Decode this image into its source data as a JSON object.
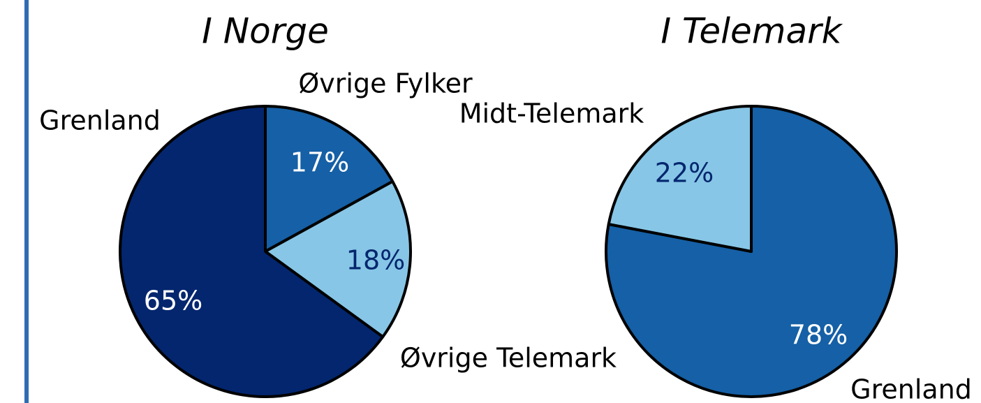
{
  "chart_data": [
    {
      "type": "pie",
      "title": "I Norge",
      "categories": [
        "Øvrige Fylker",
        "Øvrige Telemark",
        "Grenland"
      ],
      "values": [
        17,
        18,
        65
      ],
      "value_labels": [
        "17%",
        "18%",
        "65%"
      ],
      "colors": [
        "#1560a6",
        "#87c6e6",
        "#03266e"
      ]
    },
    {
      "type": "pie",
      "title": "I Telemark",
      "categories": [
        "Grenland",
        "Midt-Telemark"
      ],
      "values": [
        78,
        22
      ],
      "value_labels": [
        "78%",
        "22%"
      ],
      "colors": [
        "#1560a6",
        "#87c6e6"
      ]
    }
  ]
}
